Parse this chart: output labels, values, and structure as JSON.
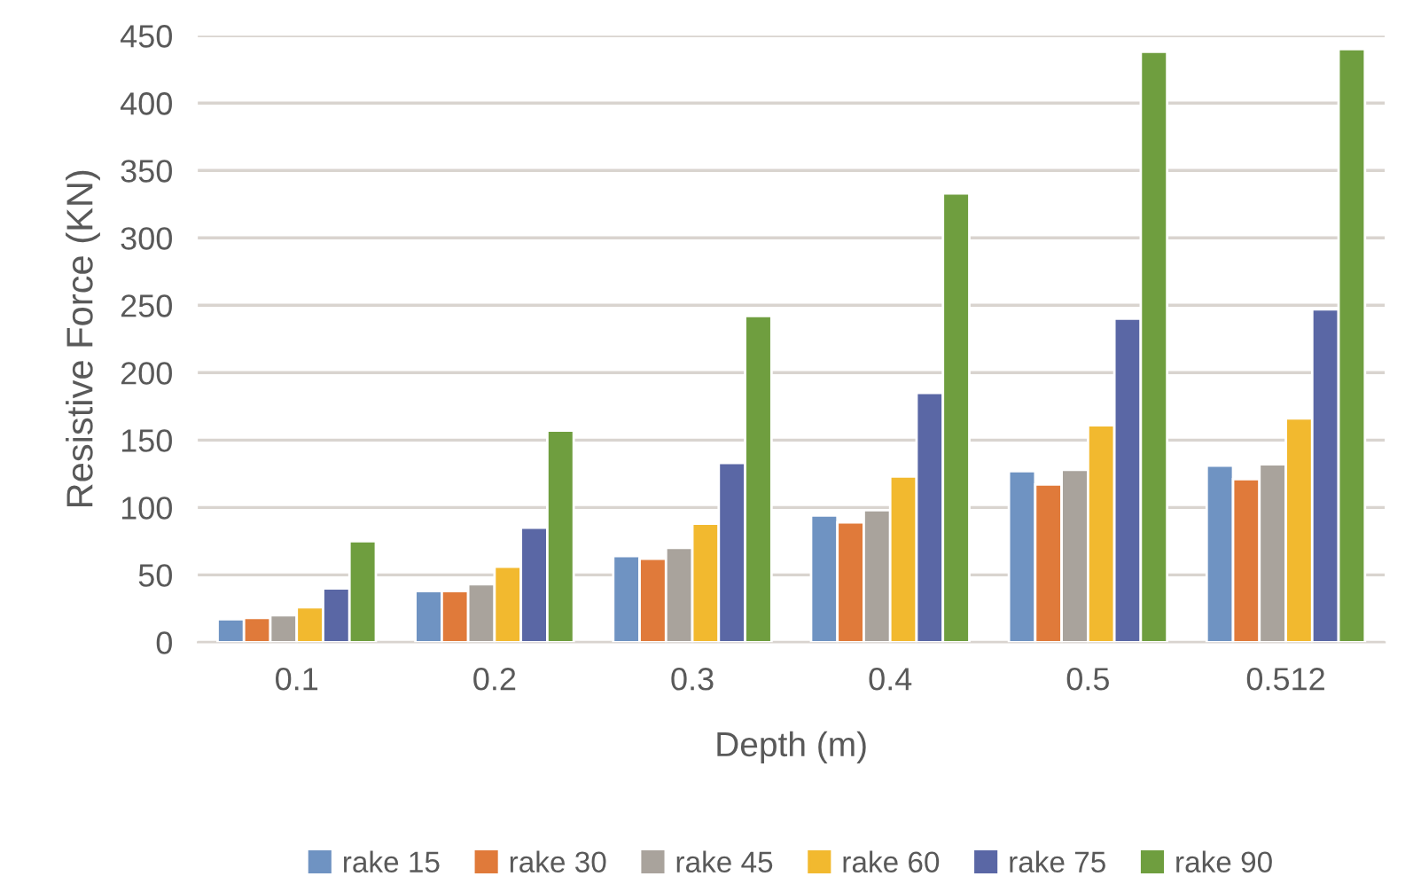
{
  "chart_data": {
    "type": "bar",
    "xlabel": "Depth (m)",
    "ylabel": "Resistive Force (KN)",
    "categories": [
      "0.1",
      "0.2",
      "0.3",
      "0.4",
      "0.5",
      "0.512"
    ],
    "series": [
      {
        "name": "rake 15",
        "color": "#6f93c2",
        "values": [
          17,
          38,
          64,
          94,
          127,
          131
        ]
      },
      {
        "name": "rake 30",
        "color": "#e07a3a",
        "values": [
          18,
          38,
          62,
          89,
          117,
          121
        ]
      },
      {
        "name": "rake 45",
        "color": "#a9a39c",
        "values": [
          20,
          43,
          70,
          98,
          128,
          132
        ]
      },
      {
        "name": "rake 60",
        "color": "#f2b92f",
        "values": [
          26,
          56,
          88,
          123,
          161,
          166
        ]
      },
      {
        "name": "rake 75",
        "color": "#5a67a5",
        "values": [
          40,
          85,
          133,
          185,
          240,
          247
        ]
      },
      {
        "name": "rake 90",
        "color": "#6f9e3f",
        "values": [
          75,
          157,
          242,
          333,
          438,
          440
        ]
      }
    ],
    "ylim": [
      0,
      450
    ],
    "yticks": [
      0,
      50,
      100,
      150,
      200,
      250,
      300,
      350,
      400,
      450
    ],
    "grid": "y",
    "legend": "bottom"
  }
}
